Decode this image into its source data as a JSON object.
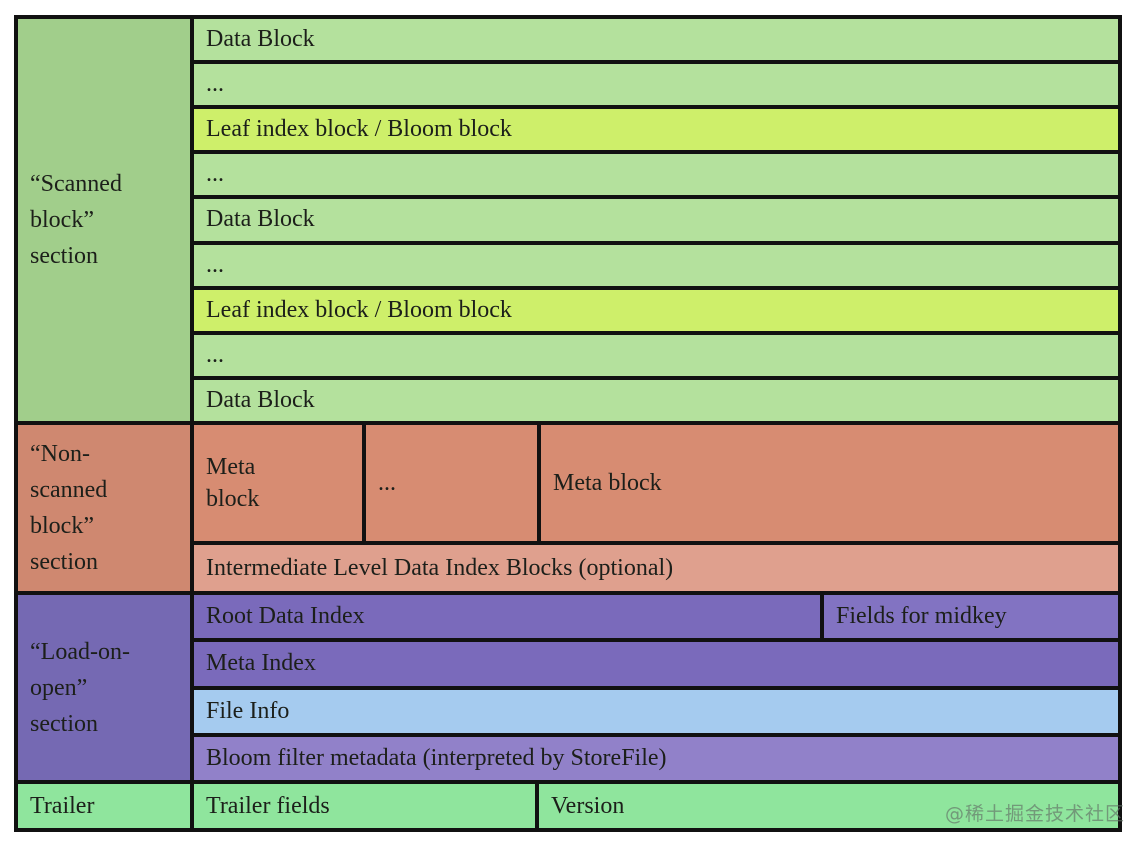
{
  "watermark": "@稀土掘金技术社区",
  "colors": {
    "grid_border": "#111111",
    "scanned_label_bg": "#a1ce8b",
    "green_row_bg": "#b4e19d",
    "leaf_row_bg": "#ceef6a",
    "non_scanned_label_bg": "#cf8870",
    "meta_cell_bg": "#d78c72",
    "intermediate_row_bg": "#dfa08e",
    "load_on_open_label_bg": "#7569b3",
    "purple_row_bg": "#7a6abb",
    "fields_midkey_bg": "#8273c2",
    "file_info_bg": "#a5cbef",
    "bloom_row_bg": "#9181c9",
    "trailer_bg": "#8fe59d",
    "text": "#1c1f1a"
  },
  "sections": [
    {
      "name": "scanned-block-section",
      "label": "“Scanned\nblock”\nsection",
      "rows": [
        "Data Block",
        "...",
        "Leaf index block / Bloom block",
        "...",
        "Data Block",
        "...",
        "Leaf index block / Bloom block",
        "...",
        "Data Block"
      ]
    },
    {
      "name": "non-scanned-block-section",
      "label": "“Non-\nscanned\nblock”\nsection",
      "meta_cells": [
        "Meta\nblock",
        "...",
        "Meta block"
      ],
      "intermediate": "Intermediate Level Data Index Blocks (optional)"
    },
    {
      "name": "load-on-open-section",
      "label": "“Load-on-\nopen”\nsection",
      "root_data_index": "Root Data Index",
      "fields_for_midkey": "Fields for midkey",
      "meta_index": "Meta Index",
      "file_info": "File Info",
      "bloom_filter": "Bloom filter metadata (interpreted by StoreFile)"
    },
    {
      "name": "trailer-section",
      "label": "Trailer",
      "trailer_fields": "Trailer fields",
      "version": "Version"
    }
  ]
}
